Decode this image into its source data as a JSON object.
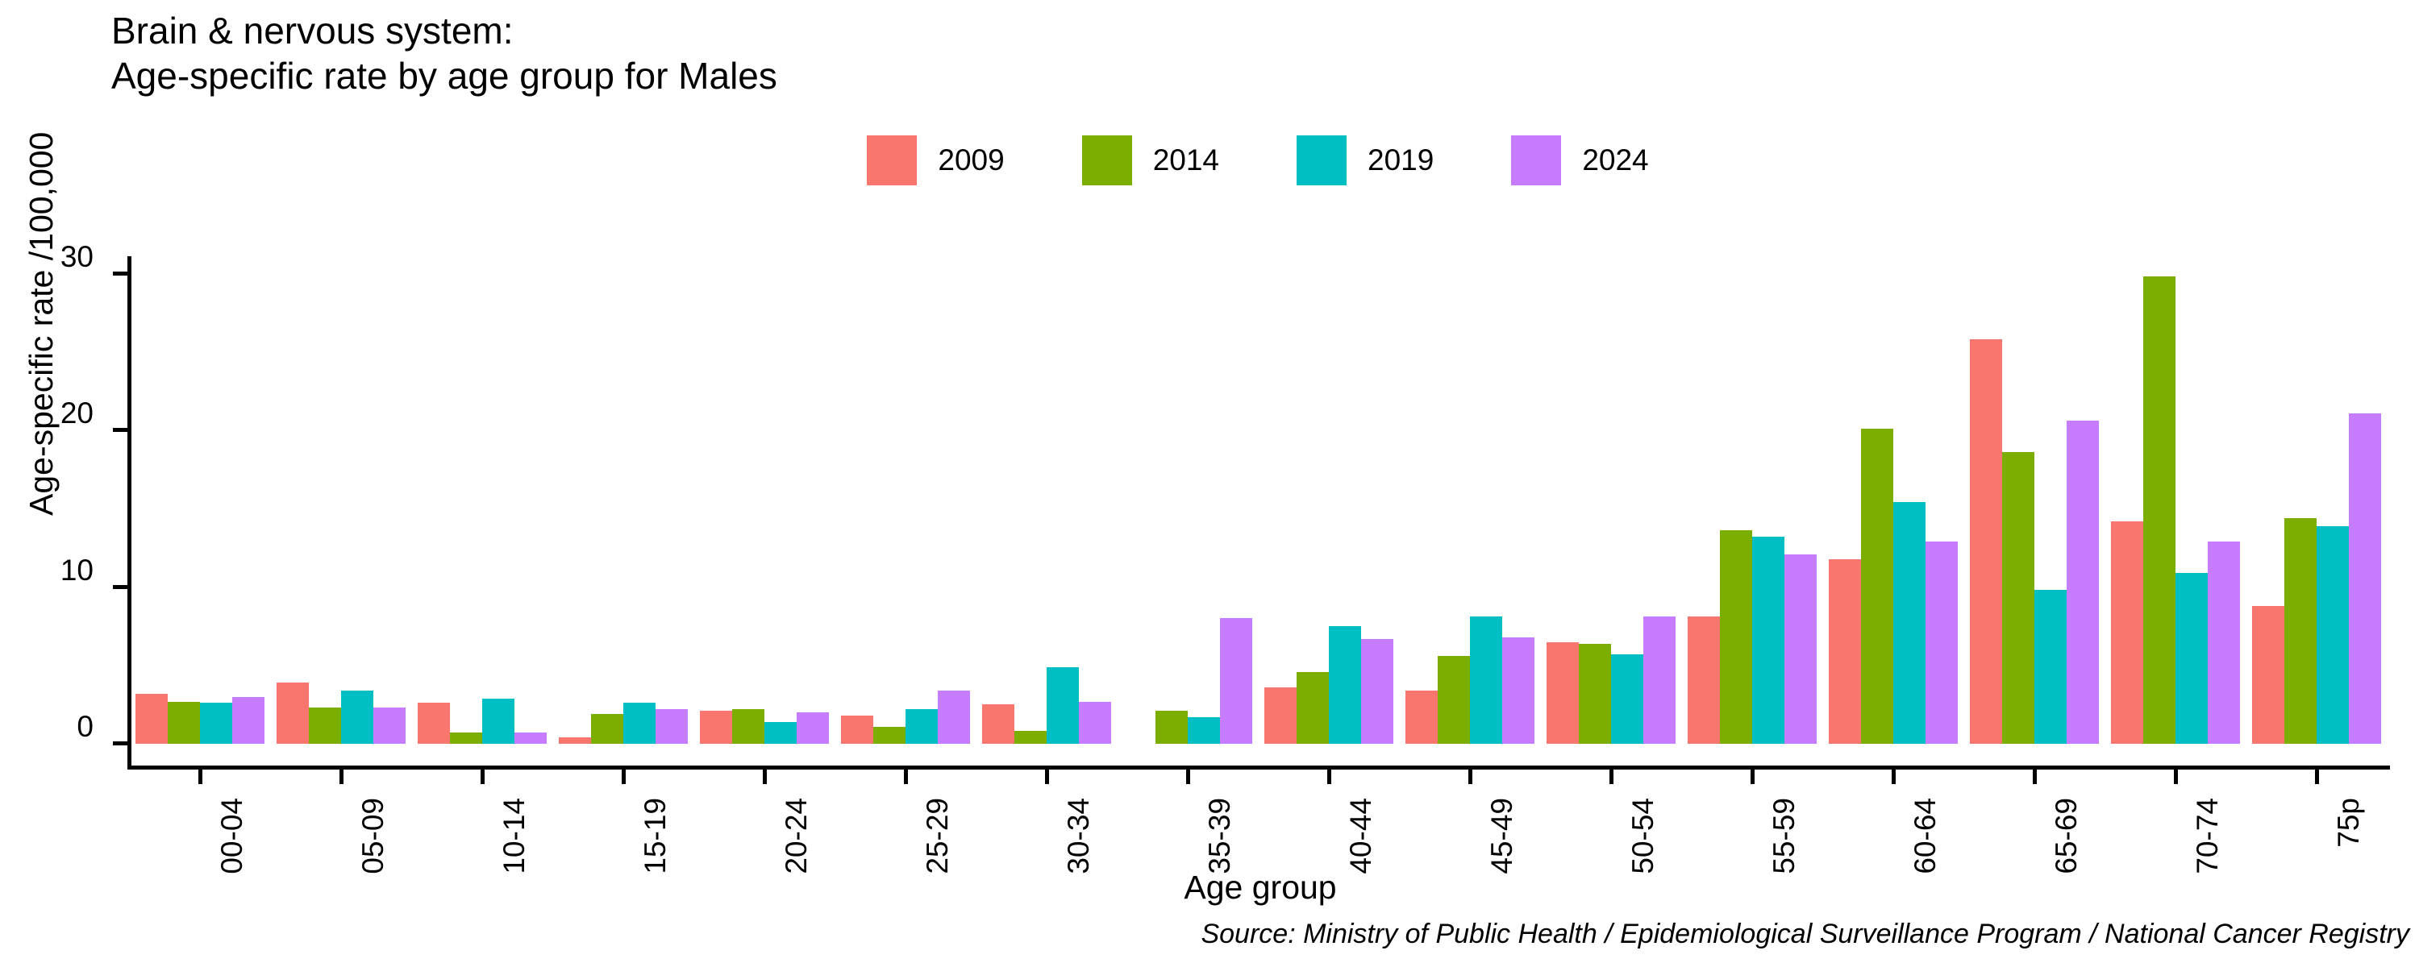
{
  "title": "Brain & nervous system:\nAge-specific rate by age group for Males",
  "source_note": "Source: Ministry of Public Health / Epidemiological Surveillance Program / National Cancer Registry",
  "colors": {
    "series_2009": "#F8766D",
    "series_2014": "#7CAE00",
    "series_2019": "#00BFC4",
    "series_2024": "#C77CFF",
    "axis": "#000000",
    "text": "#000000"
  },
  "chart_data": {
    "type": "bar",
    "title": "Brain & nervous system: Age-specific rate by age group for Males",
    "xlabel": "Age group",
    "ylabel": "Age-specific rate /100,000",
    "ylim": [
      0,
      31
    ],
    "yticks": [
      0,
      10,
      20,
      30
    ],
    "grid": false,
    "legend_position": "top-center",
    "categories": [
      "00-04",
      "05-09",
      "10-14",
      "15-19",
      "20-24",
      "25-29",
      "30-34",
      "35-39",
      "40-44",
      "45-49",
      "50-54",
      "55-59",
      "60-64",
      "65-69",
      "70-74",
      "75p"
    ],
    "series": [
      {
        "name": "2009",
        "color": "#F8766D",
        "values": [
          3.2,
          3.9,
          2.6,
          0.4,
          2.1,
          1.8,
          2.5,
          0,
          3.6,
          3.4,
          6.5,
          8.1,
          11.8,
          25.8,
          14.2,
          8.8
        ]
      },
      {
        "name": "2014",
        "color": "#7CAE00",
        "values": [
          2.7,
          2.3,
          0.7,
          1.9,
          2.2,
          1.1,
          0.8,
          2.1,
          4.6,
          5.6,
          6.4,
          13.6,
          20.1,
          18.6,
          29.8,
          14.4
        ]
      },
      {
        "name": "2019",
        "color": "#00BFC4",
        "values": [
          2.6,
          3.4,
          2.9,
          2.6,
          1.4,
          2.2,
          4.9,
          1.7,
          7.5,
          8.1,
          5.7,
          13.2,
          15.4,
          9.8,
          10.9,
          13.9
        ]
      },
      {
        "name": "2024",
        "color": "#C77CFF",
        "values": [
          3.0,
          2.3,
          0.7,
          2.2,
          2.0,
          3.4,
          2.7,
          8.0,
          6.7,
          6.8,
          8.1,
          12.1,
          12.9,
          20.6,
          12.9,
          21.1
        ]
      }
    ]
  }
}
